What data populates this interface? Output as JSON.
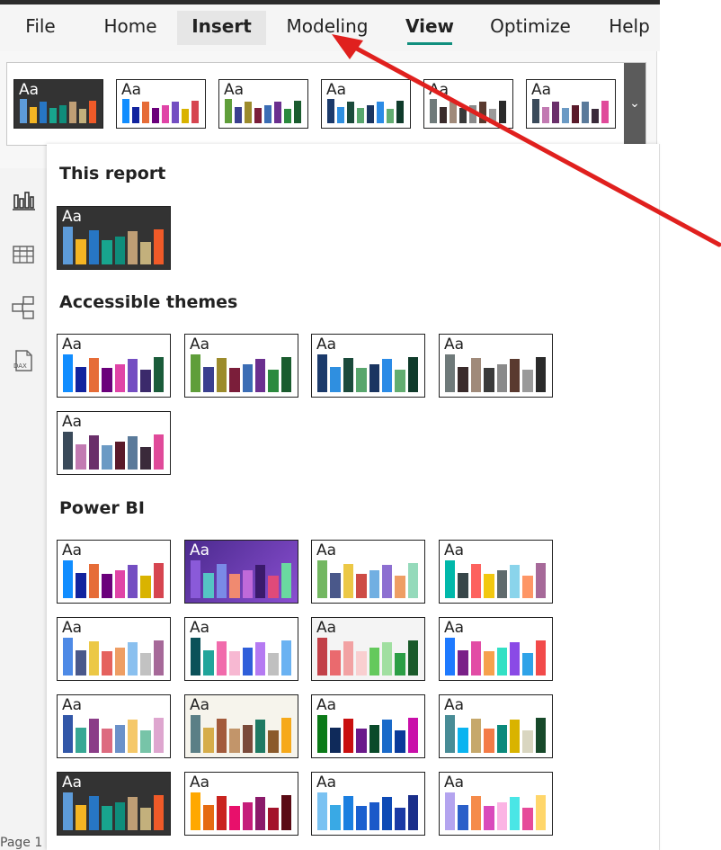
{
  "menu": {
    "items": [
      "File",
      "Home",
      "Insert",
      "Modeling",
      "View",
      "Optimize",
      "Help"
    ],
    "active": "Insert"
  },
  "sidebar": {
    "icons": [
      "report-view-icon",
      "table-view-icon",
      "model-view-icon",
      "dax-query-view-icon"
    ],
    "page_label": "Page 1"
  },
  "sections": {
    "this_report": "This report",
    "accessible": "Accessible themes",
    "power_bi": "Power BI"
  },
  "themes": {
    "aa_label": "Aa",
    "ribbon": [
      {
        "bg": "#333333",
        "text": "#ffffff",
        "colors": [
          "#5d9bd9",
          "#f4b523",
          "#2776c4",
          "#18a58e",
          "#0f8d7b",
          "#bf9e75",
          "#c3b07c",
          "#f05a28"
        ]
      },
      {
        "bg": "#ffffff",
        "text": "#222222",
        "colors": [
          "#118dff",
          "#12239e",
          "#e66c37",
          "#6b007b",
          "#e044a7",
          "#744ec2",
          "#d9b300",
          "#d64550"
        ]
      },
      {
        "bg": "#ffffff",
        "text": "#222222",
        "colors": [
          "#5f9e3a",
          "#3a3f8f",
          "#9c8b2c",
          "#7b1e3a",
          "#3b6db5",
          "#6b2f8f",
          "#2b8a3e",
          "#1a5c2e"
        ]
      },
      {
        "bg": "#ffffff",
        "text": "#222222",
        "colors": [
          "#1b3a6b",
          "#2f8fe0",
          "#1b4a3b",
          "#58a66d",
          "#1a3561",
          "#2b8be6",
          "#62ad70",
          "#0f3b2b"
        ]
      },
      {
        "bg": "#ffffff",
        "text": "#222222",
        "colors": [
          "#6f7a7a",
          "#3a2b2b",
          "#a08a7a",
          "#3a3a3a",
          "#8a8a8a",
          "#5a3a2f",
          "#9a9a9a",
          "#2a2a2a"
        ]
      },
      {
        "bg": "#ffffff",
        "text": "#222222",
        "colors": [
          "#3a4a5a",
          "#c27ab2",
          "#6a2f6a",
          "#6b9ac4",
          "#5a1a2a",
          "#5a7a9a",
          "#3a2a3a",
          "#e04a9a"
        ]
      }
    ],
    "this_report": [
      {
        "bg": "#333333",
        "text": "#ffffff",
        "colors": [
          "#5d9bd9",
          "#f4b523",
          "#2776c4",
          "#18a58e",
          "#0f8d7b",
          "#bf9e75",
          "#c3b07c",
          "#f05a28"
        ]
      }
    ],
    "accessible": [
      {
        "bg": "#ffffff",
        "text": "#222222",
        "colors": [
          "#118dff",
          "#12239e",
          "#e66c37",
          "#6b007b",
          "#e044a7",
          "#744ec2",
          "#3b2a6b",
          "#1a5c3a"
        ]
      },
      {
        "bg": "#ffffff",
        "text": "#222222",
        "colors": [
          "#5f9e3a",
          "#3a3f8f",
          "#9c8b2c",
          "#7b1e3a",
          "#3b6db5",
          "#6b2f8f",
          "#2b8a3e",
          "#1a5c2e"
        ]
      },
      {
        "bg": "#ffffff",
        "text": "#222222",
        "colors": [
          "#1b3a6b",
          "#2f8fe0",
          "#1b4a3b",
          "#58a66d",
          "#1a3561",
          "#2b8be6",
          "#62ad70",
          "#0f3b2b"
        ]
      },
      {
        "bg": "#ffffff",
        "text": "#222222",
        "colors": [
          "#6f7a7a",
          "#3a2b2b",
          "#a08a7a",
          "#3a3a3a",
          "#8a8a8a",
          "#5a3a2f",
          "#9a9a9a",
          "#2a2a2a"
        ]
      },
      {
        "bg": "#ffffff",
        "text": "#222222",
        "colors": [
          "#3a4a5a",
          "#c27ab2",
          "#6a2f6a",
          "#6b9ac4",
          "#5a1a2a",
          "#5a7a9a",
          "#3a2a3a",
          "#e04a9a"
        ]
      }
    ],
    "power_bi": [
      {
        "bg": "#ffffff",
        "text": "#222222",
        "colors": [
          "#118dff",
          "#12239e",
          "#e66c37",
          "#6b007b",
          "#e044a7",
          "#744ec2",
          "#d9b300",
          "#d64550"
        ]
      },
      {
        "bg": "#6a3ba8",
        "text": "#ffffff",
        "colors": [
          "#8a5ad9",
          "#55c4c4",
          "#7a8ae6",
          "#f08a70",
          "#c06ad9",
          "#3a1a6b",
          "#e04a7a",
          "#6ad9a0"
        ]
      },
      {
        "bg": "#ffffff",
        "text": "#222222",
        "colors": [
          "#73b761",
          "#4a588a",
          "#ecc846",
          "#cd4c46",
          "#71afe2",
          "#8d6fd1",
          "#ee9e64",
          "#95dabb"
        ]
      },
      {
        "bg": "#ffffff",
        "text": "#222222",
        "colors": [
          "#01b8aa",
          "#374649",
          "#fd625e",
          "#f2c80f",
          "#5f6b6d",
          "#8ad4eb",
          "#fe9666",
          "#a66999"
        ]
      },
      {
        "bg": "#ffffff",
        "text": "#222222",
        "colors": [
          "#4e8ae6",
          "#4a588a",
          "#ecc846",
          "#e5625e",
          "#ee9e64",
          "#8ac0ef",
          "#c2c2c2",
          "#a66999"
        ]
      },
      {
        "bg": "#ffffff",
        "text": "#222222",
        "colors": [
          "#0b5159",
          "#21a59b",
          "#f16bac",
          "#f7b8d2",
          "#2f5fda",
          "#b57af2",
          "#c0c0c0",
          "#6ab2f2"
        ]
      },
      {
        "bg": "#f4f4f4",
        "text": "#222222",
        "colors": [
          "#c24048",
          "#ea6a6e",
          "#f2a2a3",
          "#f9cfd0",
          "#64c95c",
          "#a0dfa0",
          "#2b9e45",
          "#1a5a2a"
        ]
      },
      {
        "bg": "#ffffff",
        "text": "#222222",
        "colors": [
          "#1e7aff",
          "#7a2088",
          "#e24ca5",
          "#f6a14c",
          "#33e0c5",
          "#8a4ae6",
          "#2fa3e8",
          "#f24a4a"
        ]
      },
      {
        "bg": "#ffffff",
        "text": "#222222",
        "colors": [
          "#3257a8",
          "#37a794",
          "#8b3d88",
          "#dd6b7f",
          "#6b91c9",
          "#f5c869",
          "#77c4a8",
          "#dea6cf"
        ]
      },
      {
        "bg": "#f6f4ec",
        "text": "#222222",
        "colors": [
          "#5b7f86",
          "#d6ad4a",
          "#a25a3b",
          "#c2956a",
          "#7a4a3a",
          "#1e7a63",
          "#8b5a2a",
          "#f6a91a"
        ]
      },
      {
        "bg": "#ffffff",
        "text": "#222222",
        "colors": [
          "#0b7a18",
          "#0f2a5a",
          "#c90f0f",
          "#6b1a8a",
          "#0a4a2a",
          "#1a6ac9",
          "#0a3a9a",
          "#c90fa9"
        ]
      },
      {
        "bg": "#ffffff",
        "text": "#222222",
        "colors": [
          "#488c96",
          "#0ab4f0",
          "#c6a86b",
          "#f47b46",
          "#0c8a7c",
          "#d9b300",
          "#d9d6c0",
          "#17492a"
        ]
      },
      {
        "bg": "#333333",
        "text": "#ffffff",
        "colors": [
          "#5d9bd9",
          "#f4b523",
          "#2776c4",
          "#18a58e",
          "#0f8d7b",
          "#bf9e75",
          "#c3b07c",
          "#f05a28"
        ]
      },
      {
        "bg": "#ffffff",
        "text": "#222222",
        "colors": [
          "#ffa800",
          "#e56b12",
          "#c9241f",
          "#e8106b",
          "#c51d7a",
          "#8b1a6a",
          "#a3122a",
          "#5a0a14"
        ]
      },
      {
        "bg": "#ffffff",
        "text": "#222222",
        "colors": [
          "#7ac2f2",
          "#39a9e5",
          "#1b7fe0",
          "#1a5fcf",
          "#1a59c9",
          "#0e4ab5",
          "#1b3aa5",
          "#1a2e8a"
        ]
      },
      {
        "bg": "#ffffff",
        "text": "#222222",
        "colors": [
          "#b4a4ef",
          "#2a5fc9",
          "#f58b4a",
          "#d94abc",
          "#fbb4e4",
          "#4ae6e6",
          "#e64a9a",
          "#ffd66a"
        ]
      }
    ]
  }
}
